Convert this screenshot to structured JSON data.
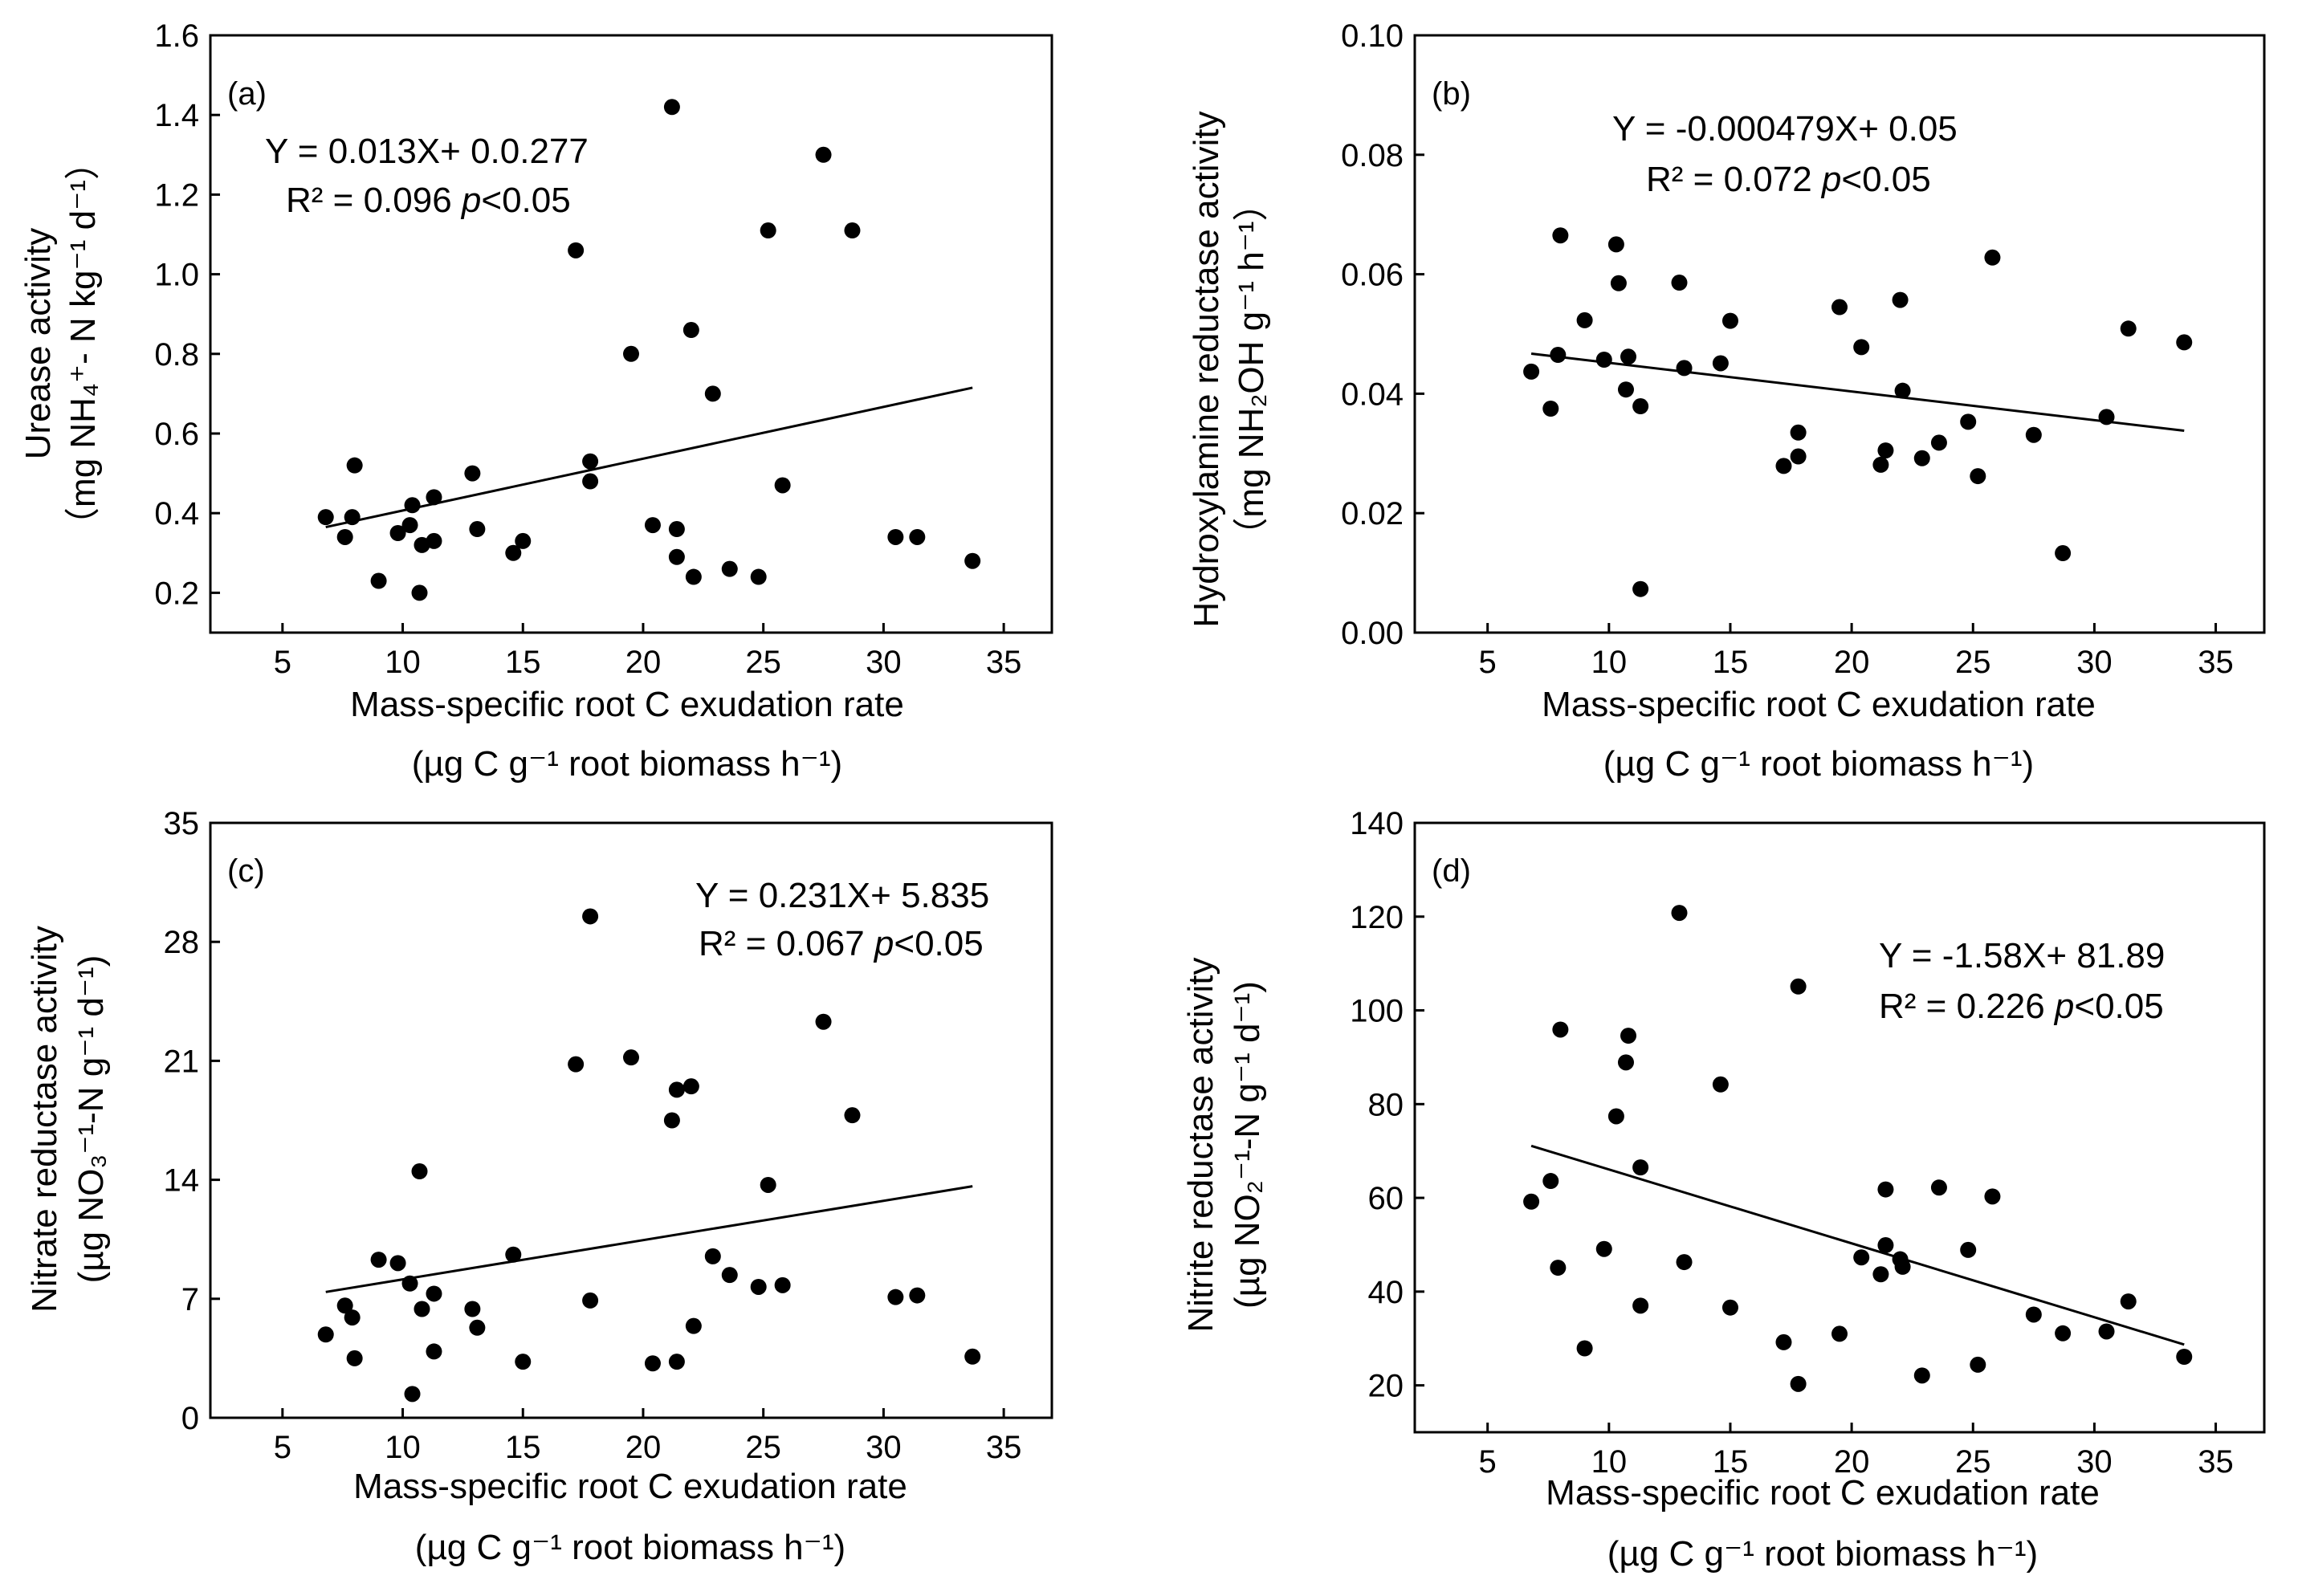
{
  "chart_data": [
    {
      "type": "scatter",
      "panel_label": "(a)",
      "xlabel_line1": "Mass-specific root C exudation rate",
      "xlabel_line2": "(µg C g⁻¹ root biomass h⁻¹)",
      "ylabel_line1": "Urease activity",
      "ylabel_line2": "（mg NH₄⁺- N kg⁻¹ d⁻¹）",
      "xlim": [
        2,
        37
      ],
      "ylim": [
        0.1,
        1.6
      ],
      "xticks": [
        5,
        10,
        15,
        20,
        25,
        30,
        35
      ],
      "yticks": [
        0.2,
        0.4,
        0.6,
        0.8,
        1.0,
        1.2,
        1.4,
        1.6
      ],
      "ytick_labels": [
        "0.2",
        "0.4",
        "0.6",
        "0.8",
        "1.0",
        "1.2",
        "1.4",
        "1.6"
      ],
      "equation": "Y = 0.013X+ 0.0.277",
      "r2_text": "R² = 0.096 ",
      "p_italic": "p",
      "p_rest": "<0.05",
      "fit": {
        "x0": 6.8,
        "y0": 0.365,
        "x1": 33.7,
        "y1": 0.715
      },
      "points": [
        [
          6.8,
          0.39
        ],
        [
          7.6,
          0.34
        ],
        [
          7.9,
          0.39
        ],
        [
          8.0,
          0.52
        ],
        [
          9.0,
          0.23
        ],
        [
          9.8,
          0.35
        ],
        [
          10.3,
          0.37
        ],
        [
          10.4,
          0.42
        ],
        [
          10.7,
          0.2
        ],
        [
          10.8,
          0.32
        ],
        [
          11.3,
          0.44
        ],
        [
          11.3,
          0.33
        ],
        [
          12.9,
          0.5
        ],
        [
          13.1,
          0.36
        ],
        [
          14.6,
          0.3
        ],
        [
          15.0,
          0.33
        ],
        [
          17.2,
          1.06
        ],
        [
          17.8,
          0.53
        ],
        [
          17.8,
          0.48
        ],
        [
          19.5,
          0.8
        ],
        [
          20.4,
          0.37
        ],
        [
          21.2,
          1.42
        ],
        [
          21.4,
          0.29
        ],
        [
          21.4,
          0.36
        ],
        [
          22.0,
          0.86
        ],
        [
          22.1,
          0.24
        ],
        [
          22.9,
          0.7
        ],
        [
          23.6,
          0.26
        ],
        [
          24.8,
          0.24
        ],
        [
          25.2,
          1.11
        ],
        [
          25.8,
          0.47
        ],
        [
          27.5,
          1.3
        ],
        [
          28.7,
          1.11
        ],
        [
          30.5,
          0.34
        ],
        [
          31.4,
          0.34
        ],
        [
          33.7,
          0.28
        ]
      ]
    },
    {
      "type": "scatter",
      "panel_label": "(b)",
      "xlabel_line1": "Mass-specific root C exudation rate",
      "xlabel_line2": "(µg C g⁻¹ root biomass h⁻¹)",
      "ylabel_line1": "Hydroxylamine reductase activity",
      "ylabel_line2": "（mg NH₂OH g⁻¹ h⁻¹）",
      "xlim": [
        2,
        37
      ],
      "ylim": [
        0,
        0.1
      ],
      "xticks": [
        5,
        10,
        15,
        20,
        25,
        30,
        35
      ],
      "yticks": [
        0,
        0.02,
        0.04,
        0.06,
        0.08,
        0.1
      ],
      "ytick_labels": [
        "0.00",
        "0.02",
        "0.04",
        "0.06",
        "0.08",
        "0.10"
      ],
      "equation": "Y = -0.000479X+ 0.05",
      "r2_text": "R² = 0.072 ",
      "p_italic": "p",
      "p_rest": "<0.05",
      "fit": {
        "x0": 6.8,
        "y0": 0.0467,
        "x1": 33.7,
        "y1": 0.0338
      },
      "points": [
        [
          6.8,
          0.0437
        ],
        [
          7.6,
          0.0375
        ],
        [
          7.9,
          0.0465
        ],
        [
          8.0,
          0.0665
        ],
        [
          9.0,
          0.0523
        ],
        [
          9.8,
          0.0457
        ],
        [
          10.3,
          0.065
        ],
        [
          10.4,
          0.0585
        ],
        [
          10.7,
          0.0407
        ],
        [
          10.8,
          0.0462
        ],
        [
          11.3,
          0.0073
        ],
        [
          11.3,
          0.0379
        ],
        [
          12.9,
          0.0586
        ],
        [
          13.1,
          0.0443
        ],
        [
          14.6,
          0.0451
        ],
        [
          15.0,
          0.0522
        ],
        [
          17.2,
          0.0279
        ],
        [
          17.8,
          0.0295
        ],
        [
          17.8,
          0.0335
        ],
        [
          19.5,
          0.0545
        ],
        [
          20.4,
          0.0478
        ],
        [
          21.2,
          0.0281
        ],
        [
          21.4,
          0.0305
        ],
        [
          22.0,
          0.0557
        ],
        [
          22.1,
          0.0405
        ],
        [
          22.9,
          0.0292
        ],
        [
          23.6,
          0.0318
        ],
        [
          24.8,
          0.0353
        ],
        [
          25.2,
          0.0262
        ],
        [
          25.8,
          0.0628
        ],
        [
          27.5,
          0.0331
        ],
        [
          28.7,
          0.0133
        ],
        [
          30.5,
          0.0361
        ],
        [
          31.4,
          0.0509
        ],
        [
          33.7,
          0.0486
        ]
      ]
    },
    {
      "type": "scatter",
      "panel_label": "(c)",
      "xlabel_line1": "Mass-specific root C exudation rate",
      "xlabel_line2": "(µg C g⁻¹ root biomass h⁻¹)",
      "ylabel_line1": "Nitrate reductase activity",
      "ylabel_line2": "(µg NO₃⁻¹-N g⁻¹ d⁻¹)",
      "xlim": [
        2,
        37
      ],
      "ylim": [
        0,
        35
      ],
      "xticks": [
        5,
        10,
        15,
        20,
        25,
        30,
        35
      ],
      "yticks": [
        0,
        7,
        14,
        21,
        28,
        35
      ],
      "ytick_labels": [
        "0",
        "7",
        "14",
        "21",
        "28",
        "35"
      ],
      "equation": "Y = 0.231X+ 5.835",
      "r2_text": "R² = 0.067 ",
      "p_italic": "p",
      "p_rest": "<0.05",
      "fit": {
        "x0": 6.8,
        "y0": 7.4,
        "x1": 33.7,
        "y1": 13.62
      },
      "points": [
        [
          6.8,
          4.9
        ],
        [
          7.6,
          6.6
        ],
        [
          7.9,
          5.9
        ],
        [
          8.0,
          3.5
        ],
        [
          9.0,
          9.3
        ],
        [
          9.8,
          9.1
        ],
        [
          10.3,
          7.9
        ],
        [
          10.4,
          1.4
        ],
        [
          10.7,
          14.5
        ],
        [
          10.8,
          6.4
        ],
        [
          11.3,
          7.3
        ],
        [
          11.3,
          3.9
        ],
        [
          12.9,
          6.4
        ],
        [
          13.1,
          5.3
        ],
        [
          14.6,
          9.6
        ],
        [
          15.0,
          3.3
        ],
        [
          17.2,
          20.8
        ],
        [
          17.8,
          29.5
        ],
        [
          17.8,
          6.9
        ],
        [
          19.5,
          21.2
        ],
        [
          20.4,
          3.2
        ],
        [
          21.2,
          17.5
        ],
        [
          21.4,
          19.3
        ],
        [
          21.4,
          3.3
        ],
        [
          22.0,
          19.5
        ],
        [
          22.1,
          5.4
        ],
        [
          22.9,
          9.5
        ],
        [
          23.6,
          8.4
        ],
        [
          24.8,
          7.7
        ],
        [
          25.2,
          13.7
        ],
        [
          25.8,
          7.8
        ],
        [
          27.5,
          23.3
        ],
        [
          28.7,
          17.8
        ],
        [
          30.5,
          7.1
        ],
        [
          31.4,
          7.2
        ],
        [
          33.7,
          3.6
        ]
      ]
    },
    {
      "type": "scatter",
      "panel_label": "(d)",
      "xlabel_line1": "Mass-specific root C exudation rate",
      "xlabel_line2": "(µg C g⁻¹ root biomass h⁻¹)",
      "ylabel_line1": "Nitrite reductase activity",
      "ylabel_line2": "(µg NO₂⁻¹-N  g⁻¹ d⁻¹)",
      "xlim": [
        2,
        37
      ],
      "ylim": [
        10,
        140
      ],
      "xticks": [
        5,
        10,
        15,
        20,
        25,
        30,
        35
      ],
      "yticks": [
        20,
        40,
        60,
        80,
        100,
        120,
        140
      ],
      "ytick_labels": [
        "20",
        "40",
        "60",
        "80",
        "100",
        "120",
        "140"
      ],
      "equation": "Y = -1.58X+ 81.89",
      "r2_text": "R² = 0.226 ",
      "p_italic": "p",
      "p_rest": "<0.05",
      "fit": {
        "x0": 6.8,
        "y0": 71.1,
        "x1": 33.7,
        "y1": 28.7
      },
      "points": [
        [
          6.8,
          59.2
        ],
        [
          7.6,
          63.6
        ],
        [
          7.9,
          45.1
        ],
        [
          8.0,
          95.9
        ],
        [
          9.0,
          27.9
        ],
        [
          9.8,
          49.1
        ],
        [
          10.3,
          77.4
        ],
        [
          10.7,
          88.9
        ],
        [
          10.8,
          94.6
        ],
        [
          11.3,
          66.5
        ],
        [
          11.3,
          37.0
        ],
        [
          12.9,
          120.8
        ],
        [
          13.1,
          46.3
        ],
        [
          14.6,
          84.2
        ],
        [
          15.0,
          36.6
        ],
        [
          17.2,
          29.2
        ],
        [
          17.8,
          20.3
        ],
        [
          17.8,
          105.1
        ],
        [
          19.5,
          31.0
        ],
        [
          20.4,
          47.3
        ],
        [
          21.2,
          43.7
        ],
        [
          21.4,
          49.9
        ],
        [
          21.4,
          61.8
        ],
        [
          22.0,
          46.9
        ],
        [
          22.1,
          45.3
        ],
        [
          22.9,
          22.1
        ],
        [
          23.6,
          62.2
        ],
        [
          24.8,
          48.9
        ],
        [
          25.2,
          24.4
        ],
        [
          25.8,
          60.3
        ],
        [
          27.5,
          35.1
        ],
        [
          28.7,
          31.1
        ],
        [
          30.5,
          31.5
        ],
        [
          31.4,
          37.9
        ],
        [
          33.7,
          26.1
        ]
      ]
    }
  ]
}
